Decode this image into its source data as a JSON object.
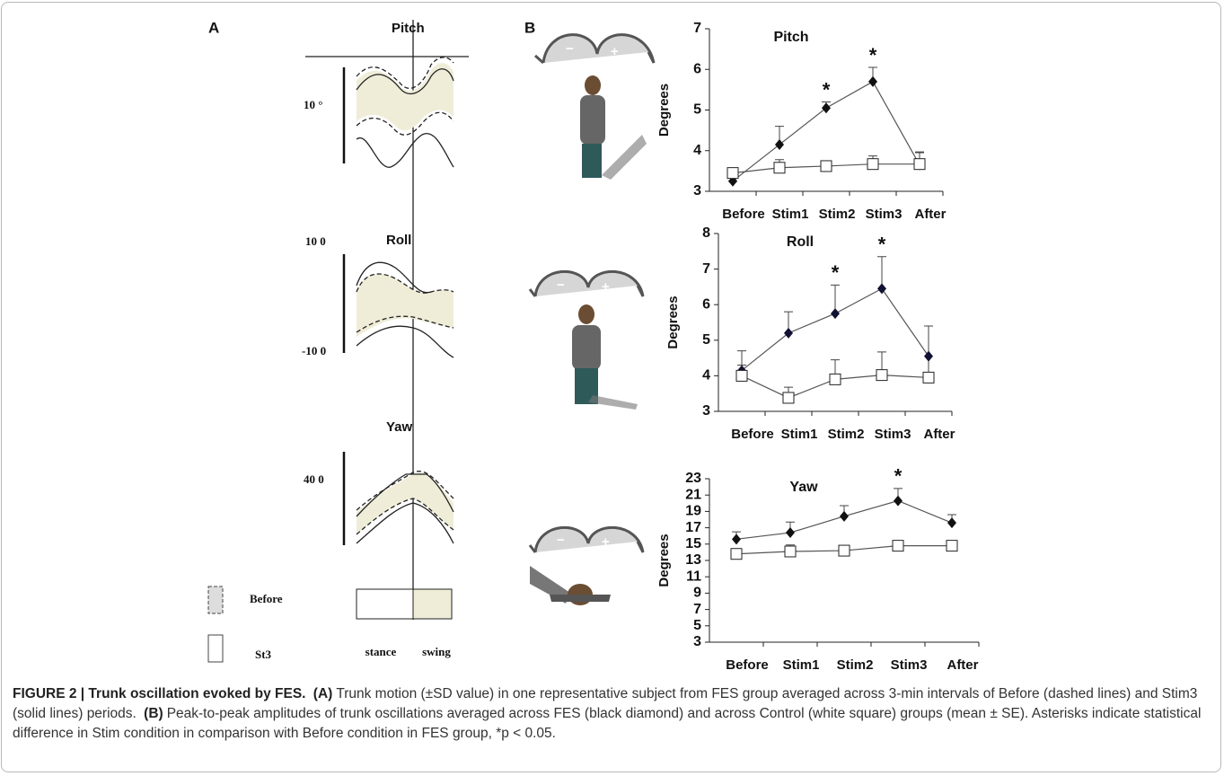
{
  "panel_a": {
    "label": "A",
    "pitch": "Pitch",
    "pitch_scale": "10 °",
    "roll": "Roll",
    "roll_top": "10 0",
    "roll_bottom": "-10 0",
    "yaw": "Yaw",
    "yaw_scale": "40 0",
    "legend_before": "Before",
    "legend_st3": "St3",
    "stance": "stance",
    "swing": "swing"
  },
  "panel_b": {
    "label": "B",
    "icons": [
      {
        "minus": "−",
        "plus": "+"
      },
      {
        "minus": "−",
        "plus": "+"
      },
      {
        "minus": "−",
        "plus": "+"
      }
    ]
  },
  "chart_data": [
    {
      "type": "line",
      "title": "Pitch",
      "y_label": "Degrees",
      "categories": [
        "Before",
        "Stim1",
        "Stim2",
        "Stim3",
        "After"
      ],
      "series": [
        {
          "color": "#111111",
          "marker": "diamond",
          "values": [
            3.25,
            4.15,
            5.05,
            5.7,
            3.65
          ],
          "errors": [
            0,
            0.45,
            0.15,
            0.35,
            0.3
          ]
        },
        {
          "color": "#ffffff",
          "marker": "square",
          "values": [
            3.45,
            3.58,
            3.62,
            3.67,
            3.67
          ],
          "errors": [
            0,
            0.2,
            0.12,
            0.2,
            0.3
          ]
        }
      ],
      "annotations": [
        {
          "category": "Stim2",
          "text": "*"
        },
        {
          "category": "Stim3",
          "text": "*"
        }
      ],
      "ylim": [
        3,
        7
      ],
      "yticks": [
        3,
        4,
        5,
        6,
        7
      ]
    },
    {
      "type": "line",
      "title": "Roll",
      "y_label": "Degrees",
      "categories": [
        "Before",
        "Stim1",
        "Stim2",
        "Stim3",
        "After"
      ],
      "series": [
        {
          "color": "#111133",
          "marker": "diamond",
          "values": [
            4.15,
            5.2,
            5.75,
            6.45,
            4.55
          ],
          "errors": [
            0.55,
            0.6,
            0.8,
            0.9,
            0.85
          ]
        },
        {
          "color": "#ffffff",
          "marker": "square",
          "values": [
            4.0,
            3.38,
            3.9,
            4.02,
            3.95
          ],
          "errors": [
            0.3,
            0.3,
            0.55,
            0.65,
            1.45
          ]
        }
      ],
      "annotations": [
        {
          "category": "Stim2",
          "text": "*"
        },
        {
          "category": "Stim3",
          "text": "*"
        }
      ],
      "ylim": [
        3,
        8
      ],
      "yticks": [
        3,
        4,
        5,
        6,
        7,
        8
      ]
    },
    {
      "type": "line",
      "title": "Yaw",
      "y_label": "Degrees",
      "categories": [
        "Before",
        "Stim1",
        "Stim2",
        "Stim3",
        "After"
      ],
      "series": [
        {
          "color": "#111111",
          "marker": "diamond",
          "values": [
            15.6,
            16.4,
            18.4,
            20.3,
            17.6
          ],
          "errors": [
            0.9,
            1.3,
            1.3,
            1.5,
            1.0
          ]
        },
        {
          "color": "#ffffff",
          "marker": "square",
          "values": [
            13.8,
            14.1,
            14.2,
            14.8,
            14.8
          ],
          "errors": [
            0.3,
            0.8,
            0.6,
            0.3,
            0.3
          ]
        }
      ],
      "annotations": [
        {
          "category": "Stim3",
          "text": "*"
        }
      ],
      "ylim": [
        3,
        23
      ],
      "yticks": [
        3,
        5,
        7,
        9,
        11,
        13,
        15,
        17,
        19,
        21,
        23
      ]
    }
  ],
  "caption": {
    "title": "FIGURE 2 | Trunk oscillation evoked by FES.",
    "parts": [
      {
        "label": "(A)",
        "text": "Trunk motion (±SD value) in one representative subject from FES group averaged across 3-min intervals of Before (dashed lines) and Stim3 (solid lines) periods."
      },
      {
        "label": "(B)",
        "text": "Peak-to-peak amplitudes of trunk oscillations averaged across FES (black diamond) and across Control (white square) groups (mean ± SE). Asterisks indicate statistical difference in Stim condition in comparison with Before condition in FES group, *p < 0.05."
      }
    ]
  }
}
